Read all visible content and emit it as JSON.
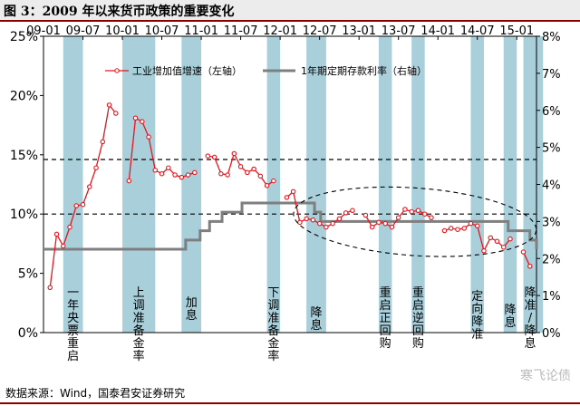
{
  "figure": {
    "title": "图 3：2009 年以来货币政策的重要变化",
    "source": "数据来源：Wind，国泰君安证券研究",
    "watermark": "寒飞论债"
  },
  "colors": {
    "band": "#a9cfdb",
    "ip_series": "#e8141b",
    "deposit_rate": "#7f7f7f",
    "title_rule": "#8a0000"
  },
  "chart_data": {
    "type": "line",
    "x_ticks": [
      "09-01",
      "09-07",
      "10-01",
      "10-07",
      "11-01",
      "11-07",
      "12-01",
      "12-07",
      "13-01",
      "13-07",
      "14-01",
      "14-07",
      "15-01"
    ],
    "x_range": [
      "2009-01",
      "2015-04"
    ],
    "y_left": {
      "ticks": [
        "0%",
        "5%",
        "10%",
        "15%",
        "20%",
        "25%"
      ],
      "range": [
        0,
        25
      ]
    },
    "y_right": {
      "ticks": [
        "0%",
        "1%",
        "2%",
        "3%",
        "4%",
        "5%",
        "6%",
        "7%",
        "8%"
      ],
      "range": [
        0,
        8
      ]
    },
    "legend": {
      "position": "top",
      "items": [
        {
          "label": "工业增加值增速（左轴）",
          "series": "ip"
        },
        {
          "label": "1年期定期存款利率（右轴）",
          "series": "rate"
        }
      ]
    },
    "series": [
      {
        "name": "工业增加值增速（左轴）",
        "axis": "left",
        "points": [
          [
            "2009-02",
            3.8
          ],
          [
            "2009-03",
            8.3
          ],
          [
            "2009-04",
            7.3
          ],
          [
            "2009-05",
            8.9
          ],
          [
            "2009-06",
            10.7
          ],
          [
            "2009-07",
            10.8
          ],
          [
            "2009-08",
            12.3
          ],
          [
            "2009-09",
            13.9
          ],
          [
            "2009-10",
            16.1
          ],
          [
            "2009-11",
            19.2
          ],
          [
            "2009-12",
            18.5
          ],
          [
            "2010-02",
            12.8
          ],
          [
            "2010-03",
            18.1
          ],
          [
            "2010-04",
            17.8
          ],
          [
            "2010-05",
            16.5
          ],
          [
            "2010-06",
            13.7
          ],
          [
            "2010-07",
            13.4
          ],
          [
            "2010-08",
            13.9
          ],
          [
            "2010-09",
            13.3
          ],
          [
            "2010-10",
            13.1
          ],
          [
            "2010-11",
            13.3
          ],
          [
            "2010-12",
            13.5
          ],
          [
            "2011-02",
            14.9
          ],
          [
            "2011-03",
            14.8
          ],
          [
            "2011-04",
            13.4
          ],
          [
            "2011-05",
            13.3
          ],
          [
            "2011-06",
            15.1
          ],
          [
            "2011-07",
            14.0
          ],
          [
            "2011-08",
            13.5
          ],
          [
            "2011-09",
            13.8
          ],
          [
            "2011-10",
            13.2
          ],
          [
            "2011-11",
            12.4
          ],
          [
            "2011-12",
            12.8
          ],
          [
            "2012-02",
            11.4
          ],
          [
            "2012-03",
            11.9
          ],
          [
            "2012-04",
            9.3
          ],
          [
            "2012-05",
            9.6
          ],
          [
            "2012-06",
            9.5
          ],
          [
            "2012-07",
            9.2
          ],
          [
            "2012-08",
            8.9
          ],
          [
            "2012-09",
            9.2
          ],
          [
            "2012-10",
            9.6
          ],
          [
            "2012-11",
            10.1
          ],
          [
            "2012-12",
            10.3
          ],
          [
            "2013-02",
            9.9
          ],
          [
            "2013-03",
            8.9
          ],
          [
            "2013-04",
            9.3
          ],
          [
            "2013-05",
            9.2
          ],
          [
            "2013-06",
            8.9
          ],
          [
            "2013-07",
            9.7
          ],
          [
            "2013-08",
            10.4
          ],
          [
            "2013-09",
            10.2
          ],
          [
            "2013-10",
            10.3
          ],
          [
            "2013-11",
            10.0
          ],
          [
            "2013-12",
            9.7
          ],
          [
            "2014-02",
            8.6
          ],
          [
            "2014-03",
            8.8
          ],
          [
            "2014-04",
            8.7
          ],
          [
            "2014-05",
            8.8
          ],
          [
            "2014-06",
            9.2
          ],
          [
            "2014-07",
            9.0
          ],
          [
            "2014-08",
            6.9
          ],
          [
            "2014-09",
            8.0
          ],
          [
            "2014-10",
            7.7
          ],
          [
            "2014-11",
            7.2
          ],
          [
            "2014-12",
            7.9
          ],
          [
            "2015-02",
            6.8
          ],
          [
            "2015-03",
            5.6
          ]
        ]
      },
      {
        "name": "1年期定期存款利率（右轴）",
        "axis": "right",
        "steps": [
          [
            "2009-01",
            2.25
          ],
          [
            "2010-10-20",
            2.5
          ],
          [
            "2010-12-26",
            2.75
          ],
          [
            "2011-02-09",
            3.0
          ],
          [
            "2011-04-06",
            3.25
          ],
          [
            "2011-07-07",
            3.5
          ],
          [
            "2012-06-08",
            3.25
          ],
          [
            "2012-07-06",
            3.0
          ],
          [
            "2014-11-22",
            2.75
          ],
          [
            "2015-03-01",
            2.5
          ],
          [
            "2015-04",
            2.25
          ]
        ]
      }
    ],
    "reference_lines": [
      {
        "axis": "left",
        "value": 14.6,
        "style": "dashed"
      },
      {
        "axis": "left",
        "value": 10.0,
        "style": "dashed"
      }
    ],
    "highlight_ellipse": {
      "from": "2012-03",
      "to": "2015-04",
      "left_range": [
        6.5,
        12.2
      ]
    },
    "policy_events": [
      {
        "id": "e1",
        "from": "2009-04",
        "to": "2009-06",
        "label": "一年央票重启"
      },
      {
        "id": "e2",
        "from": "2010-01",
        "to": "2010-05",
        "label": "上调准备金率"
      },
      {
        "id": "e3",
        "from": "2010-10",
        "to": "2010-12",
        "label": "加息"
      },
      {
        "id": "e4",
        "from": "2011-11",
        "to": "2011-12",
        "label": "下调准备金率"
      },
      {
        "id": "e5",
        "from": "2012-05",
        "to": "2012-07",
        "label": "降息"
      },
      {
        "id": "e6",
        "from": "2013-04",
        "to": "2013-05",
        "label": "重启正回购"
      },
      {
        "id": "e7",
        "from": "2013-09",
        "to": "2013-10",
        "label": "重启逆回购"
      },
      {
        "id": "e8",
        "from": "2014-06",
        "to": "2014-07",
        "label": "定向降准"
      },
      {
        "id": "e9",
        "from": "2014-11",
        "to": "2014-12",
        "label": "降息"
      },
      {
        "id": "e10",
        "from": "2015-02",
        "to": "2015-04",
        "label": "降准/降息"
      }
    ]
  }
}
